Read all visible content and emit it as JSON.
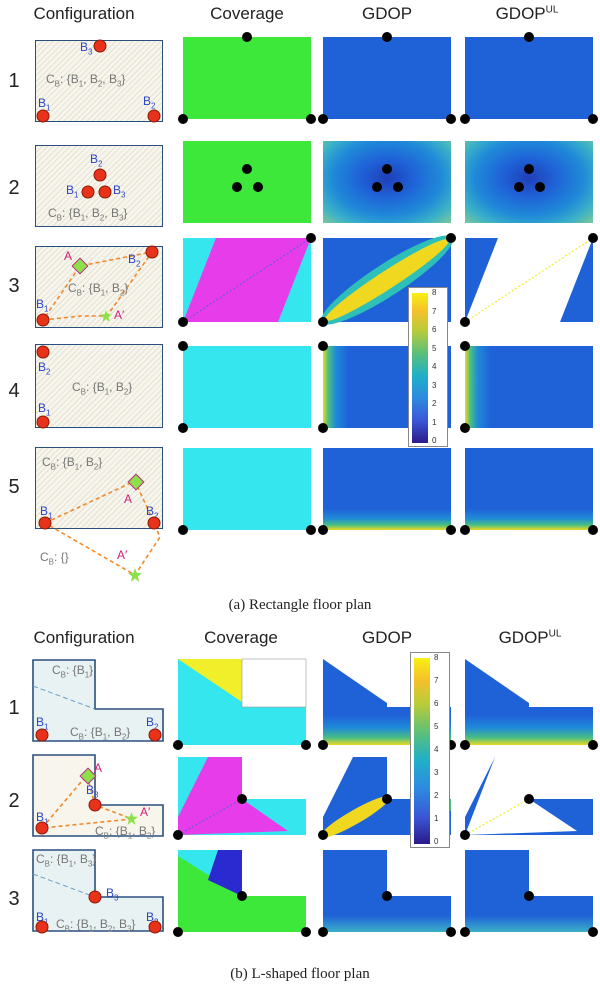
{
  "headers_a": {
    "configuration": "Configuration",
    "coverage": "Coverage",
    "gdop": "GDOP",
    "gdop_ul": "GDOP",
    "ul": "UL"
  },
  "headers_b": {
    "configuration": "Configuration",
    "coverage": "Coverage",
    "gdop": "GDOP",
    "gdop_ul": "GDOP",
    "ul": "UL"
  },
  "rows_a": [
    "1",
    "2",
    "3",
    "4",
    "5"
  ],
  "rows_b": [
    "1",
    "2",
    "3"
  ],
  "caption_a": "(a) Rectangle floor plan",
  "caption_b": "(b) L-shaped floor plan",
  "colorbar_ticks": [
    "8",
    "7",
    "6",
    "5",
    "4",
    "3",
    "2",
    "1",
    "0"
  ],
  "labels": {
    "b1": "B",
    "b2": "B",
    "b3": "B",
    "s1": "1",
    "s2": "2",
    "s3": "3",
    "a": "A",
    "aprime": "A′",
    "cb_all": "C",
    "cb_sub": "B",
    "set_123": ": {B",
    "set_12": ": {B",
    "set_1": ": {B",
    "set_13": ": {B",
    "set_empty": ": {}"
  },
  "colors": {
    "coverage_green": "#3ee83a",
    "coverage_cyan": "#36e6ee",
    "coverage_magenta": "#e63cea",
    "coverage_yellow": "#f0ef2a",
    "coverage_blue": "#2a2ad0",
    "gdop_blue": "#1f62d8",
    "anchor_red": "#e8321a"
  }
}
